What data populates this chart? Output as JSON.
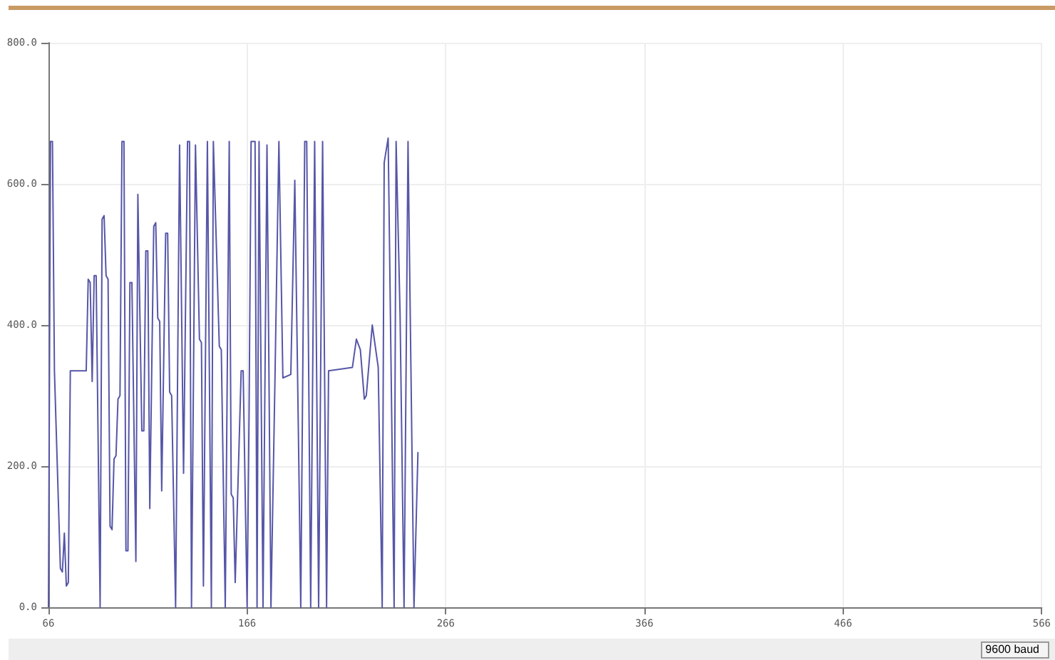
{
  "chart_data": {
    "type": "line",
    "x": [
      66,
      67,
      68,
      69,
      72,
      73,
      74,
      75,
      76,
      77,
      85,
      86,
      87,
      88,
      89,
      90,
      92,
      93,
      94,
      95,
      96,
      97,
      98,
      99,
      100,
      101,
      102,
      103,
      104,
      105,
      106,
      107,
      108,
      110,
      111,
      113,
      114,
      115,
      116,
      117,
      119,
      120,
      121,
      122,
      123,
      125,
      126,
      127,
      128,
      130,
      132,
      134,
      136,
      137,
      138,
      140,
      142,
      143,
      144,
      146,
      148,
      149,
      152,
      153,
      155,
      157,
      158,
      159,
      160,
      163,
      164,
      166,
      167,
      168,
      170,
      171,
      172,
      174,
      176,
      178,
      180,
      182,
      184,
      188,
      190,
      192,
      193,
      195,
      196,
      197,
      198,
      200,
      202,
      204,
      206,
      207,
      219,
      221,
      223,
      225,
      226,
      229,
      232,
      234,
      235,
      237,
      240,
      241,
      243,
      245,
      247,
      250,
      252
    ],
    "series": [
      {
        "color": "#5656a8",
        "values": [
          0,
          660,
          660,
          335,
          55,
          50,
          105,
          30,
          35,
          335,
          335,
          465,
          460,
          320,
          470,
          470,
          0,
          550,
          555,
          470,
          465,
          115,
          110,
          210,
          215,
          295,
          300,
          660,
          660,
          80,
          80,
          460,
          460,
          65,
          585,
          250,
          250,
          505,
          505,
          140,
          540,
          545,
          410,
          405,
          165,
          530,
          530,
          305,
          300,
          0,
          655,
          190,
          660,
          660,
          0,
          655,
          380,
          375,
          30,
          660,
          0,
          660,
          370,
          365,
          0,
          660,
          160,
          155,
          35,
          335,
          335,
          0,
          280,
          660,
          660,
          0,
          660,
          0,
          655,
          0,
          320,
          660,
          325,
          330,
          605,
          210,
          0,
          660,
          660,
          330,
          0,
          660,
          0,
          660,
          0,
          335,
          340,
          380,
          365,
          295,
          300,
          400,
          340,
          0,
          630,
          665,
          0,
          660,
          415,
          0,
          660,
          0,
          220
        ]
      }
    ],
    "xlim": [
      66,
      566
    ],
    "xticks": [
      66,
      166,
      266,
      366,
      466,
      566
    ],
    "ylim": [
      0,
      800
    ],
    "yticks": [
      {
        "value": 0,
        "label": "0.0"
      },
      {
        "value": 200,
        "label": "200.0"
      },
      {
        "value": 400,
        "label": "400.0"
      },
      {
        "value": 600,
        "label": "600.0"
      },
      {
        "value": 800,
        "label": "800.0"
      }
    ],
    "grid": true,
    "marker": "none",
    "line_style": "solid",
    "annotations": [
      "9600 baud"
    ]
  }
}
